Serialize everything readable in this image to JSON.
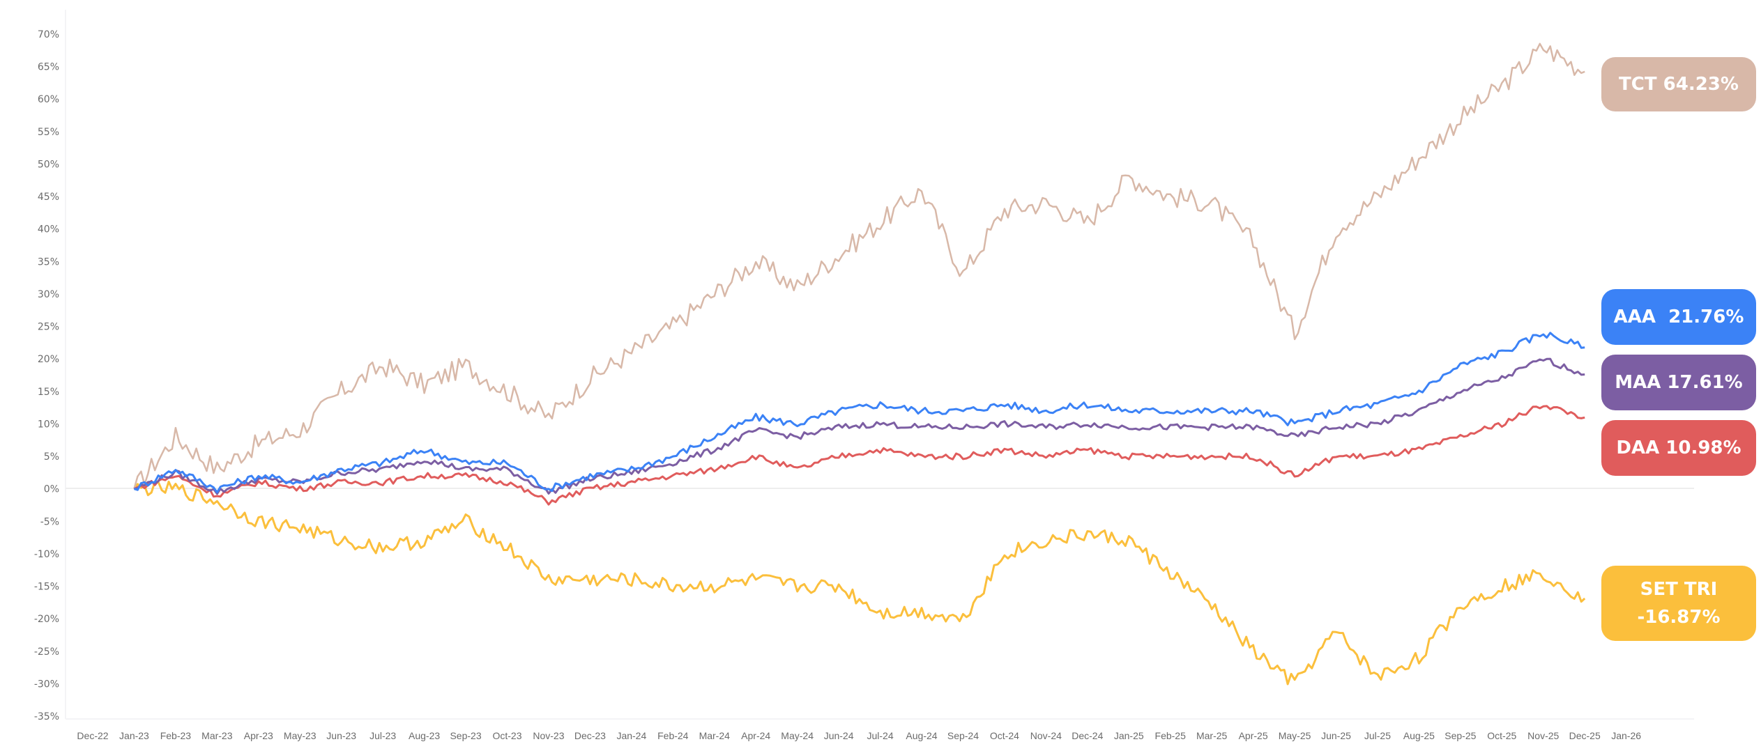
{
  "chart_data": {
    "type": "line",
    "title": "",
    "xlabel": "",
    "ylabel": "",
    "ylim": [
      -35,
      70
    ],
    "y_ticks": [
      "70%",
      "65%",
      "60%",
      "55%",
      "50%",
      "45%",
      "40%",
      "35%",
      "30%",
      "25%",
      "20%",
      "15%",
      "10%",
      "5%",
      "0%",
      "-5%",
      "-10%",
      "-15%",
      "-20%",
      "-25%",
      "-30%",
      "-35%"
    ],
    "x_ticks": [
      "Dec-22",
      "Jan-23",
      "Feb-23",
      "Mar-23",
      "Apr-23",
      "May-23",
      "Jun-23",
      "Jul-23",
      "Aug-23",
      "Sep-23",
      "Oct-23",
      "Nov-23",
      "Dec-23",
      "Jan-24",
      "Feb-24",
      "Mar-24",
      "Apr-24",
      "May-24",
      "Jun-24",
      "Jul-24",
      "Aug-24",
      "Sep-24",
      "Oct-24",
      "Nov-24",
      "Dec-24",
      "Jan-25",
      "Feb-25",
      "Mar-25",
      "Apr-25",
      "May-25",
      "Jun-25",
      "Jul-25",
      "Aug-25",
      "Sep-25",
      "Oct-25",
      "Nov-25",
      "Dec-25",
      "Jan-26"
    ],
    "grid": false,
    "zero_line": true,
    "legend_position": "right-end-labels",
    "x": [
      "Jan-23",
      "Feb-23",
      "Mar-23",
      "Apr-23",
      "May-23",
      "Jun-23",
      "Jul-23",
      "Aug-23",
      "Sep-23",
      "Oct-23",
      "Nov-23",
      "Dec-23",
      "Jan-24",
      "Feb-24",
      "Mar-24",
      "Apr-24",
      "May-24",
      "Jun-24",
      "Jul-24",
      "Aug-24",
      "Sep-24",
      "Oct-24",
      "Nov-24",
      "Dec-24",
      "Jan-25",
      "Feb-25",
      "Mar-25",
      "Apr-25",
      "May-25",
      "Jun-25",
      "Jul-25",
      "Aug-25",
      "Sep-25",
      "Oct-25",
      "Nov-25",
      "Dec-25"
    ],
    "series": [
      {
        "name": "TCT",
        "color": "#d8b8a8",
        "end_label": "TCT 64.23%",
        "final": 64.23,
        "values": [
          0,
          8,
          3,
          7,
          9,
          15,
          19,
          16,
          19,
          15,
          11,
          17,
          21,
          25,
          30,
          35,
          31,
          36,
          41,
          46,
          33,
          43,
          44,
          41,
          48,
          45,
          44,
          38,
          24,
          40,
          45,
          51,
          57,
          62,
          68,
          64.23
        ]
      },
      {
        "name": "AAA",
        "color": "#3b82f6",
        "end_label": "AAA  21.76%",
        "final": 21.76,
        "values": [
          0,
          3,
          0,
          2,
          1,
          3,
          4,
          6,
          4,
          4,
          0,
          2,
          3,
          5,
          8,
          11,
          10,
          12,
          13,
          12,
          12,
          13,
          12,
          13,
          12,
          12,
          12,
          12,
          10,
          12,
          13,
          15,
          19,
          21,
          24,
          21.76
        ]
      },
      {
        "name": "MAA",
        "color": "#7c5ea3",
        "end_label": "MAA 17.61%",
        "final": 17.61,
        "values": [
          0,
          2.5,
          -0.5,
          1.5,
          1,
          2.5,
          3,
          4.5,
          3,
          3,
          -0.5,
          1.5,
          2.5,
          4,
          6,
          9,
          8,
          9.5,
          10,
          9.5,
          9.5,
          10,
          9.5,
          10,
          9.5,
          9.5,
          9.5,
          9.5,
          8,
          9.5,
          10,
          12,
          15,
          17,
          20,
          17.61
        ]
      },
      {
        "name": "DAA",
        "color": "#e05c5c",
        "end_label": "DAA 10.98%",
        "final": 10.98,
        "values": [
          0,
          2,
          -1,
          1,
          0,
          1,
          1,
          2,
          2,
          1,
          -2,
          0,
          1,
          2,
          3,
          5,
          3,
          5,
          6,
          5,
          5,
          6,
          5,
          6,
          5,
          5,
          5,
          5,
          2,
          5,
          5,
          6,
          8,
          10,
          13,
          10.98
        ]
      },
      {
        "name": "SET TRI",
        "color": "#fbbf3c",
        "end_label_line1": "SET TRI",
        "end_label_line2": "-16.87%",
        "final": -16.87,
        "values": [
          0,
          0,
          -2,
          -5,
          -6,
          -8,
          -9,
          -8,
          -5,
          -9,
          -14,
          -14,
          -14,
          -15,
          -15,
          -14,
          -15,
          -15,
          -19,
          -19,
          -20,
          -10,
          -8,
          -7,
          -8,
          -13,
          -18,
          -25,
          -30,
          -22,
          -29,
          -26,
          -18,
          -15,
          -13,
          -16.87
        ]
      }
    ]
  },
  "labels": {
    "tct": "TCT 64.23%",
    "aaa": "AAA  21.76%",
    "maa": "MAA 17.61%",
    "daa": "DAA 10.98%",
    "set_line1": "SET TRI",
    "set_line2": "-16.87%"
  },
  "colors": {
    "tct": "#d8b8a8",
    "aaa": "#3b82f6",
    "maa": "#7c5ea3",
    "daa": "#e05c5c",
    "set": "#fbbf3c",
    "axis_text": "#6b6b6b",
    "zero_line": "#eeeeee"
  }
}
